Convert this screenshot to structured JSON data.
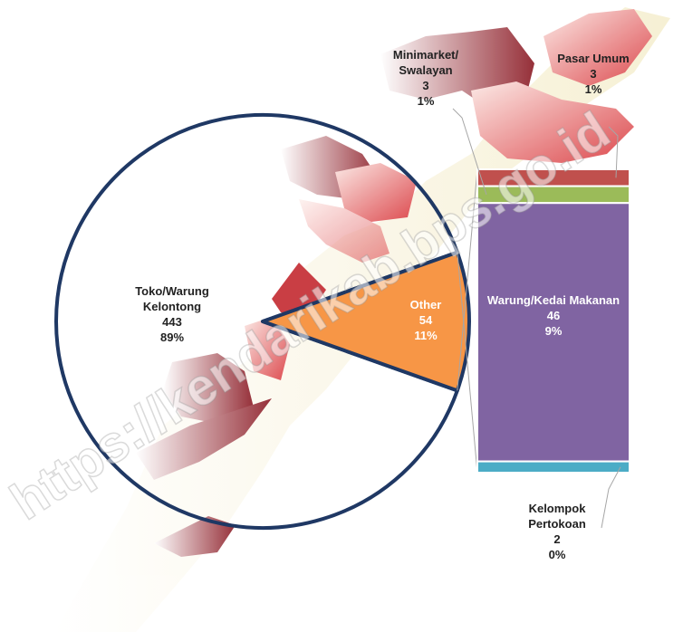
{
  "chart_data": {
    "type": "barofpie",
    "watermark": "https://kendarikab.bps.go.id",
    "pie": {
      "categories": [
        "Toko/Warung Kelontong",
        "Other"
      ],
      "values": [
        443,
        54
      ],
      "percents": [
        89,
        11
      ],
      "percent_labels": [
        "89%",
        "11%"
      ],
      "colors": [
        "none",
        "#f79646"
      ]
    },
    "bar": {
      "categories": [
        "Pasar Umum",
        "Minimarket/ Swalayan",
        "Warung/Kedai Makanan",
        "Kelompok Pertokoan"
      ],
      "values": [
        3,
        3,
        46,
        2
      ],
      "percents": [
        1,
        1,
        9,
        0
      ],
      "percent_labels": [
        "1%",
        "1%",
        "9%",
        "0%"
      ],
      "colors": [
        "#c0504d",
        "#9bbb59",
        "#8064a2",
        "#4bacc6"
      ]
    }
  }
}
